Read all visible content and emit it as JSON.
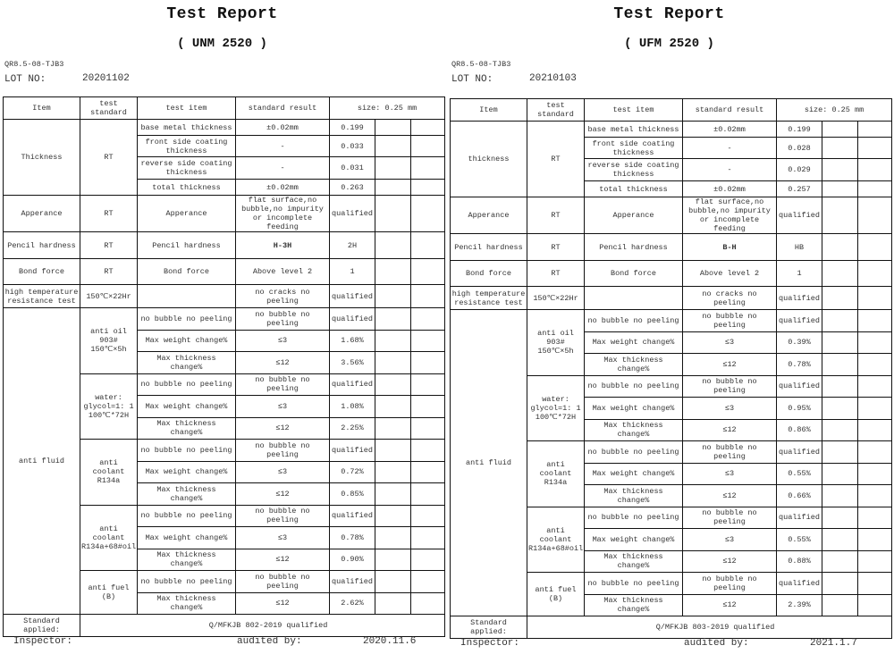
{
  "reports": [
    {
      "title": "Test Report",
      "subtitle": "(   UNM 2520 )",
      "doc_code": "QR8.5-08-TJB3",
      "lot_label": "LOT NO:",
      "lot_value": "20201102",
      "header": {
        "item": "Item",
        "test_standard": "test standard",
        "test_item": "test item",
        "standard_result": "standard result",
        "size": "size: 0.25 mm"
      },
      "thickness": {
        "item": "Thickness",
        "standard": "RT",
        "rows": [
          {
            "test_item": "base metal thickness",
            "standard_result": "±0.02mm",
            "result": "0.199"
          },
          {
            "test_item": "front side coating thickness",
            "standard_result": "-",
            "result": "0.033"
          },
          {
            "test_item": "reverse side coating thickness",
            "standard_result": "-",
            "result": "0.031"
          },
          {
            "test_item": "total thickness",
            "standard_result": "±0.02mm",
            "result": "0.263"
          }
        ]
      },
      "appearance": {
        "item": "Apperance",
        "standard": "RT",
        "test_item": "Apperance",
        "standard_result": "flat surface,no bubble,no impurity or incomplete feeding",
        "result": "qualified"
      },
      "pencil": {
        "item": "Pencil hardness",
        "standard": "RT",
        "test_item": "Pencil hardness",
        "standard_result": "H-3H",
        "result": "2H"
      },
      "bond": {
        "item": "Bond force",
        "standard": "RT",
        "test_item": "Bond force",
        "standard_result": "Above level 2",
        "result": "1"
      },
      "high_temp": {
        "item": "high temperature resistance test",
        "standard": "150℃×22Hr",
        "test_item": "",
        "standard_result": "no cracks  no peeling",
        "result": "qualified"
      },
      "anti_fluid": {
        "item": "anti fluid",
        "groups": [
          {
            "condition": "anti oil 903# 150℃×5h",
            "rows": [
              {
                "test_item": "no bubble  no peeling",
                "standard_result": "no bubble  no peeling",
                "result": "qualified"
              },
              {
                "test_item": "Max weight change%",
                "standard_result": "≤3",
                "result": "1.68%"
              },
              {
                "test_item": "Max thickness change%",
                "standard_result": "≤12",
                "result": "3.56%"
              }
            ]
          },
          {
            "condition": "water: glycol=1: 1 100℃*72H",
            "rows": [
              {
                "test_item": "no bubble  no peeling",
                "standard_result": "no bubble  no peeling",
                "result": "qualified"
              },
              {
                "test_item": "Max weight change%",
                "standard_result": "≤3",
                "result": "1.08%"
              },
              {
                "test_item": "Max thickness change%",
                "standard_result": "≤12",
                "result": "2.25%"
              }
            ]
          },
          {
            "condition": "anti coolant R134a",
            "rows": [
              {
                "test_item": "no bubble  no peeling",
                "standard_result": "no bubble  no peeling",
                "result": "qualified"
              },
              {
                "test_item": "Max weight change%",
                "standard_result": "≤3",
                "result": "0.72%"
              },
              {
                "test_item": "Max thickness change%",
                "standard_result": "≤12",
                "result": "0.85%"
              }
            ]
          },
          {
            "condition": "anti coolant R134a+68#oil",
            "rows": [
              {
                "test_item": "no bubble  no peeling",
                "standard_result": "no bubble  no peeling",
                "result": "qualified"
              },
              {
                "test_item": "Max weight change%",
                "standard_result": "≤3",
                "result": "0.78%"
              },
              {
                "test_item": "Max thickness change%",
                "standard_result": "≤12",
                "result": "0.90%"
              }
            ]
          },
          {
            "condition": "anti fuel (B)",
            "rows": [
              {
                "test_item": "no bubble  no peeling",
                "standard_result": "no bubble  no peeling",
                "result": "qualified"
              },
              {
                "test_item": "Max thickness change%",
                "standard_result": "≤12",
                "result": "2.62%"
              }
            ]
          }
        ]
      },
      "standard_applied_label": "Standard applied:",
      "standard_applied_value": "Q/MFKJB 802-2019  qualified",
      "inspector_label": "Inspector:",
      "audited_label": "audited by:",
      "date": "2020.11.6"
    },
    {
      "title": "Test Report",
      "subtitle": "(   UFM 2520 )",
      "doc_code": "QR8.5-08-TJB3",
      "lot_label": "LOT NO:",
      "lot_value": "20210103",
      "header": {
        "item": "Item",
        "test_standard": "test standard",
        "test_item": "test item",
        "standard_result": "standard result",
        "size": "size: 0.25 mm"
      },
      "thickness": {
        "item": "thickness",
        "standard": "RT",
        "rows": [
          {
            "test_item": "base metal thickness",
            "standard_result": "±0.02mm",
            "result": "0.199"
          },
          {
            "test_item": "front side coating thickness",
            "standard_result": "-",
            "result": "0.028"
          },
          {
            "test_item": "reverse side coating thickness",
            "standard_result": "-",
            "result": "0.029"
          },
          {
            "test_item": "total thickness",
            "standard_result": "±0.02mm",
            "result": "0.257"
          }
        ]
      },
      "appearance": {
        "item": "Apperance",
        "standard": "RT",
        "test_item": "Apperance",
        "standard_result": "flat surface,no bubble,no impurity or incomplete feeding",
        "result": "qualified"
      },
      "pencil": {
        "item": "Pencil hardness",
        "standard": "RT",
        "test_item": "Pencil hardness",
        "standard_result": "B-H",
        "result": "HB"
      },
      "bond": {
        "item": "Bond force",
        "standard": "RT",
        "test_item": "Bond force",
        "standard_result": "Above level 2",
        "result": "1"
      },
      "high_temp": {
        "item": "high temperature resistance test",
        "standard": "150℃×22Hr",
        "test_item": "",
        "standard_result": "no cracks  no peeling",
        "result": "qualified"
      },
      "anti_fluid": {
        "item": "anti fluid",
        "groups": [
          {
            "condition": "anti oil 903# 150℃×5h",
            "rows": [
              {
                "test_item": "no bubble  no peeling",
                "standard_result": "no bubble  no peeling",
                "result": "qualified"
              },
              {
                "test_item": "Max weight change%",
                "standard_result": "≤3",
                "result": "0.39%"
              },
              {
                "test_item": "Max thickness change%",
                "standard_result": "≤12",
                "result": "0.78%"
              }
            ]
          },
          {
            "condition": "water: glycol=1: 1 100℃*72H",
            "rows": [
              {
                "test_item": "no bubble  no peeling",
                "standard_result": "no bubble  no peeling",
                "result": "qualified"
              },
              {
                "test_item": "Max weight change%",
                "standard_result": "≤3",
                "result": "0.95%"
              },
              {
                "test_item": "Max thickness change%",
                "standard_result": "≤12",
                "result": "0.86%"
              }
            ]
          },
          {
            "condition": "anti coolant R134a",
            "rows": [
              {
                "test_item": "no bubble  no peeling",
                "standard_result": "no bubble  no peeling",
                "result": "qualified"
              },
              {
                "test_item": "Max weight change%",
                "standard_result": "≤3",
                "result": "0.55%"
              },
              {
                "test_item": "Max thickness change%",
                "standard_result": "≤12",
                "result": "0.66%"
              }
            ]
          },
          {
            "condition": "anti coolant R134a+68#oil",
            "rows": [
              {
                "test_item": "no bubble  no peeling",
                "standard_result": "no bubble  no peeling",
                "result": "qualified"
              },
              {
                "test_item": "Max weight change%",
                "standard_result": "≤3",
                "result": "0.55%"
              },
              {
                "test_item": "Max thickness change%",
                "standard_result": "≤12",
                "result": "0.88%"
              }
            ]
          },
          {
            "condition": "anti fuel (B)",
            "rows": [
              {
                "test_item": "no bubble  no peeling",
                "standard_result": "no bubble  no peeling",
                "result": "qualified"
              },
              {
                "test_item": "Max thickness change%",
                "standard_result": "≤12",
                "result": "2.39%"
              }
            ]
          }
        ]
      },
      "standard_applied_label": "Standard applied:",
      "standard_applied_value": "Q/MFKJB 803-2019  qualified",
      "inspector_label": "Inspector:",
      "audited_label": "audited by:",
      "date": "2021.1.7"
    }
  ]
}
